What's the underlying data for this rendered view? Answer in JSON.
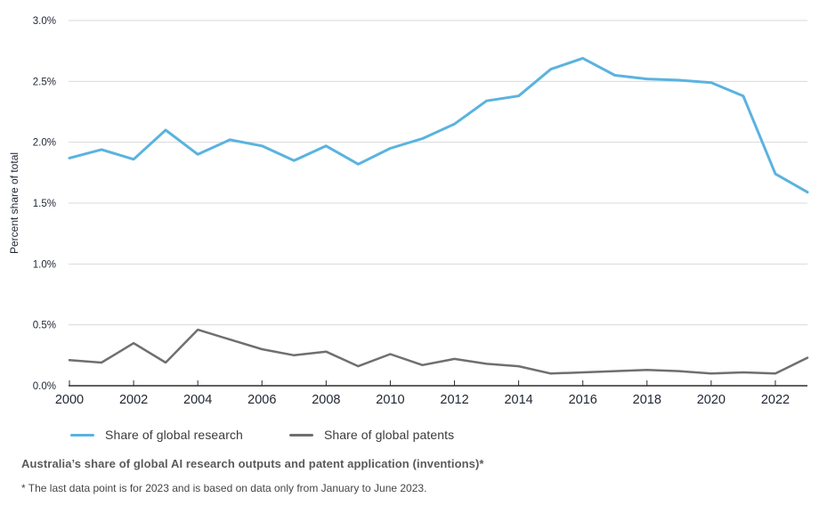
{
  "caption": "Australia’s share of global AI research outputs and patent application (inventions)*",
  "footnote": "* The last data point is for 2023 and is based on data only from January to June 2023.",
  "colors": {
    "research_line": "#5AB3DF",
    "patents_line": "#6F6F6F",
    "gridline": "#D9D9D9",
    "axis": "#2B2B2B",
    "tick_text": "#1F2633"
  },
  "chart_data": {
    "type": "line",
    "title": "Australia’s share of global AI research outputs and patent application (inventions)*",
    "xlabel": "",
    "ylabel": "Percent share of total",
    "x": [
      2000,
      2001,
      2002,
      2003,
      2004,
      2005,
      2006,
      2007,
      2008,
      2009,
      2010,
      2011,
      2012,
      2013,
      2014,
      2015,
      2016,
      2017,
      2018,
      2019,
      2020,
      2021,
      2022,
      2023
    ],
    "series": [
      {
        "name": "Share of global research",
        "color": "#5AB3DF",
        "values": [
          1.87,
          1.94,
          1.86,
          2.1,
          1.9,
          2.02,
          1.97,
          1.85,
          1.97,
          1.82,
          1.95,
          2.03,
          2.15,
          2.34,
          2.38,
          2.6,
          2.69,
          2.55,
          2.52,
          2.51,
          2.49,
          2.38,
          1.74,
          1.59
        ]
      },
      {
        "name": "Share of global patents",
        "color": "#6F6F6F",
        "values": [
          0.21,
          0.19,
          0.35,
          0.19,
          0.46,
          0.38,
          0.3,
          0.25,
          0.28,
          0.16,
          0.26,
          0.17,
          0.22,
          0.18,
          0.16,
          0.1,
          0.11,
          0.12,
          0.13,
          0.12,
          0.1,
          0.11,
          0.1,
          0.23
        ]
      }
    ],
    "ylim": [
      0,
      3
    ],
    "yticks": [
      0,
      0.5,
      1.0,
      1.5,
      2.0,
      2.5,
      3.0
    ],
    "ytick_labels": [
      "0.0%",
      "0.5%",
      "1.0%",
      "1.5%",
      "2.0%",
      "2.5%",
      "3.0%"
    ],
    "xticks": [
      2000,
      2002,
      2004,
      2006,
      2008,
      2010,
      2012,
      2014,
      2016,
      2018,
      2020,
      2022
    ],
    "grid": "horizontal",
    "legend_position": "bottom-left"
  }
}
